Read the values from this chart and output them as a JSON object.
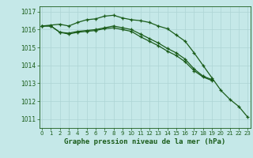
{
  "xlabel": "Graphe pression niveau de la mer (hPa)",
  "background_color": "#c5e8e8",
  "grid_color": "#aed4d4",
  "line_color": "#1a5c1a",
  "ylim": [
    1010.5,
    1017.3
  ],
  "xlim": [
    -0.3,
    23.3
  ],
  "yticks": [
    1011,
    1012,
    1013,
    1014,
    1015,
    1016,
    1017
  ],
  "xticks": [
    0,
    1,
    2,
    3,
    4,
    5,
    6,
    7,
    8,
    9,
    10,
    11,
    12,
    13,
    14,
    15,
    16,
    17,
    18,
    19,
    20,
    21,
    22,
    23
  ],
  "series": [
    [
      1016.2,
      1016.25,
      1016.3,
      1016.2,
      1016.4,
      1016.55,
      1016.6,
      1016.75,
      1016.8,
      1016.65,
      1016.55,
      1016.5,
      1016.4,
      1016.2,
      1016.05,
      1015.7,
      1015.35,
      1014.7,
      1014.0,
      1013.3,
      1012.6,
      1012.1,
      1011.7,
      1011.1
    ],
    [
      1016.2,
      1016.2,
      1015.85,
      1015.8,
      1015.9,
      1015.95,
      1016.0,
      1016.1,
      1016.2,
      1016.1,
      1016.0,
      1015.75,
      1015.5,
      1015.25,
      1014.95,
      1014.7,
      1014.35,
      1013.8,
      1013.4,
      1013.2,
      null,
      null,
      null,
      null
    ],
    [
      1016.2,
      1016.2,
      1015.85,
      1015.75,
      1015.85,
      1015.9,
      1015.95,
      1016.05,
      1016.1,
      1016.0,
      1015.9,
      1015.6,
      1015.35,
      1015.1,
      1014.8,
      1014.55,
      1014.2,
      1013.7,
      1013.35,
      1013.15,
      null,
      null,
      null,
      null
    ]
  ]
}
